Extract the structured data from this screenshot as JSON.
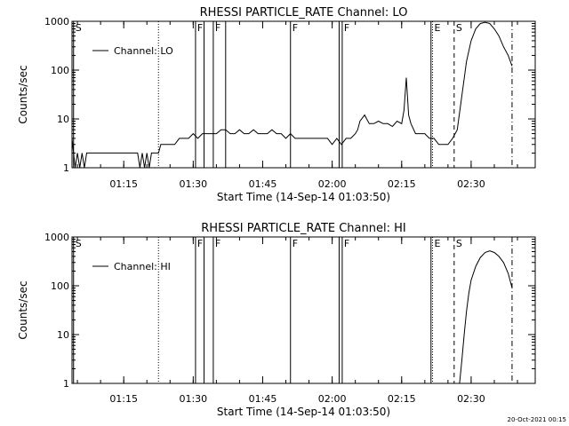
{
  "footer": {
    "timestamp": "20-Oct-2021 00:15"
  },
  "chart_data": [
    {
      "type": "line",
      "title": "RHESSI PARTICLE_RATE Channel: LO",
      "xlabel": "Start Time (14-Sep-14 01:03:50)",
      "ylabel": "Counts/sec",
      "xlim": [
        "01:03:50",
        "02:43:50"
      ],
      "ylim": [
        1,
        1000
      ],
      "yscale": "log",
      "xticks": [
        "01:15",
        "01:30",
        "01:45",
        "02:00",
        "02:15",
        "02:30"
      ],
      "yticks": [
        "1",
        "10",
        "100",
        "1000"
      ],
      "legend": {
        "label": "Channel: LO",
        "placement": "top-left"
      },
      "markers": [
        {
          "time": "01:04:10",
          "style": "solid",
          "label": "S"
        },
        {
          "time": "01:22:30",
          "style": "dotted",
          "label": ""
        },
        {
          "time": "01:30:30",
          "style": "solid",
          "label": "F"
        },
        {
          "time": "01:32:20",
          "style": "solid",
          "label": ""
        },
        {
          "time": "01:34:20",
          "style": "solid",
          "label": "F"
        },
        {
          "time": "01:37:00",
          "style": "solid",
          "label": ""
        },
        {
          "time": "01:51:00",
          "style": "solid",
          "label": "F"
        },
        {
          "time": "02:01:30",
          "style": "solid",
          "label": ""
        },
        {
          "time": "02:02:10",
          "style": "solid",
          "label": "F"
        },
        {
          "time": "02:21:20",
          "style": "solid",
          "label": ""
        },
        {
          "time": "02:21:40",
          "style": "dotted",
          "label": "E"
        },
        {
          "time": "02:26:20",
          "style": "dashed",
          "label": "S"
        },
        {
          "time": "02:38:50",
          "style": "dashdot",
          "label": ""
        }
      ],
      "series": [
        {
          "name": "Channel: LO",
          "x": [
            "01:03:50",
            "01:04:30",
            "01:05:00",
            "01:05:30",
            "01:06:00",
            "01:06:30",
            "01:07:00",
            "01:08:00",
            "01:09:00",
            "01:10:00",
            "01:11:00",
            "01:12:00",
            "01:13:00",
            "01:14:00",
            "01:15:00",
            "01:16:00",
            "01:17:00",
            "01:18:00",
            "01:18:30",
            "01:19:00",
            "01:19:30",
            "01:20:00",
            "01:20:30",
            "01:21:00",
            "01:22:00",
            "01:22:30",
            "01:23:00",
            "01:24:00",
            "01:25:00",
            "01:26:00",
            "01:27:00",
            "01:28:00",
            "01:29:00",
            "01:30:00",
            "01:31:00",
            "01:32:00",
            "01:33:00",
            "01:34:00",
            "01:35:00",
            "01:36:00",
            "01:37:00",
            "01:38:00",
            "01:39:00",
            "01:40:00",
            "01:41:00",
            "01:42:00",
            "01:43:00",
            "01:44:00",
            "01:45:00",
            "01:46:00",
            "01:47:00",
            "01:48:00",
            "01:49:00",
            "01:50:00",
            "01:51:00",
            "01:52:00",
            "01:53:00",
            "01:54:00",
            "01:55:00",
            "01:56:00",
            "01:57:00",
            "01:58:00",
            "01:59:00",
            "02:00:00",
            "02:01:00",
            "02:02:00",
            "02:03:00",
            "02:04:00",
            "02:05:00",
            "02:05:30",
            "02:06:00",
            "02:07:00",
            "02:08:00",
            "02:09:00",
            "02:10:00",
            "02:11:00",
            "02:12:00",
            "02:13:00",
            "02:14:00",
            "02:15:00",
            "02:15:30",
            "02:16:00",
            "02:16:30",
            "02:17:00",
            "02:18:00",
            "02:19:00",
            "02:20:00",
            "02:21:00",
            "02:22:00",
            "02:23:00",
            "02:24:00",
            "02:25:00",
            "02:26:00",
            "02:27:00",
            "02:28:00",
            "02:29:00",
            "02:30:00",
            "02:31:00",
            "02:32:00",
            "02:33:00",
            "02:34:00",
            "02:35:00",
            "02:36:00",
            "02:37:00",
            "02:38:00",
            "02:38:50"
          ],
          "y": [
            4,
            1,
            2,
            1,
            2,
            1,
            2,
            2,
            2,
            2,
            2,
            2,
            2,
            2,
            2,
            2,
            2,
            2,
            1,
            2,
            1,
            2,
            1,
            2,
            2,
            2,
            3,
            3,
            3,
            3,
            4,
            4,
            4,
            5,
            4,
            5,
            5,
            5,
            5,
            6,
            6,
            5,
            5,
            6,
            5,
            5,
            6,
            5,
            5,
            5,
            6,
            5,
            5,
            4,
            5,
            4,
            4,
            4,
            4,
            4,
            4,
            4,
            4,
            3,
            4,
            3,
            4,
            4,
            5,
            6,
            9,
            12,
            8,
            8,
            9,
            8,
            8,
            7,
            9,
            8,
            15,
            70,
            12,
            8,
            5,
            5,
            5,
            4,
            4,
            3,
            3,
            3,
            4,
            6,
            30,
            150,
            400,
            700,
            900,
            950,
            900,
            700,
            500,
            300,
            200,
            120
          ]
        }
      ]
    },
    {
      "type": "line",
      "title": "RHESSI PARTICLE_RATE Channel: HI",
      "xlabel": "Start Time (14-Sep-14 01:03:50)",
      "ylabel": "Counts/sec",
      "xlim": [
        "01:03:50",
        "02:43:50"
      ],
      "ylim": [
        1,
        1000
      ],
      "yscale": "log",
      "xticks": [
        "01:15",
        "01:30",
        "01:45",
        "02:00",
        "02:15",
        "02:30"
      ],
      "yticks": [
        "1",
        "10",
        "100",
        "1000"
      ],
      "legend": {
        "label": "Channel: HI",
        "placement": "top-left"
      },
      "markers": [
        {
          "time": "01:04:10",
          "style": "solid",
          "label": "S"
        },
        {
          "time": "01:22:30",
          "style": "dotted",
          "label": ""
        },
        {
          "time": "01:30:30",
          "style": "solid",
          "label": "F"
        },
        {
          "time": "01:32:20",
          "style": "solid",
          "label": ""
        },
        {
          "time": "01:34:20",
          "style": "solid",
          "label": "F"
        },
        {
          "time": "01:51:00",
          "style": "solid",
          "label": "F"
        },
        {
          "time": "02:01:30",
          "style": "solid",
          "label": ""
        },
        {
          "time": "02:02:10",
          "style": "solid",
          "label": "F"
        },
        {
          "time": "02:21:20",
          "style": "solid",
          "label": ""
        },
        {
          "time": "02:21:40",
          "style": "dotted",
          "label": "E"
        },
        {
          "time": "02:26:20",
          "style": "dashed",
          "label": "S"
        },
        {
          "time": "02:38:50",
          "style": "dashdot",
          "label": ""
        }
      ],
      "series": [
        {
          "name": "Channel: HI",
          "x": [
            "02:27:30",
            "02:28:00",
            "02:28:30",
            "02:29:00",
            "02:29:30",
            "02:30:00",
            "02:31:00",
            "02:32:00",
            "02:33:00",
            "02:34:00",
            "02:35:00",
            "02:36:00",
            "02:37:00",
            "02:38:00",
            "02:38:50"
          ],
          "y": [
            1,
            3,
            10,
            30,
            70,
            130,
            250,
            380,
            480,
            520,
            480,
            400,
            300,
            180,
            90
          ]
        }
      ]
    }
  ]
}
